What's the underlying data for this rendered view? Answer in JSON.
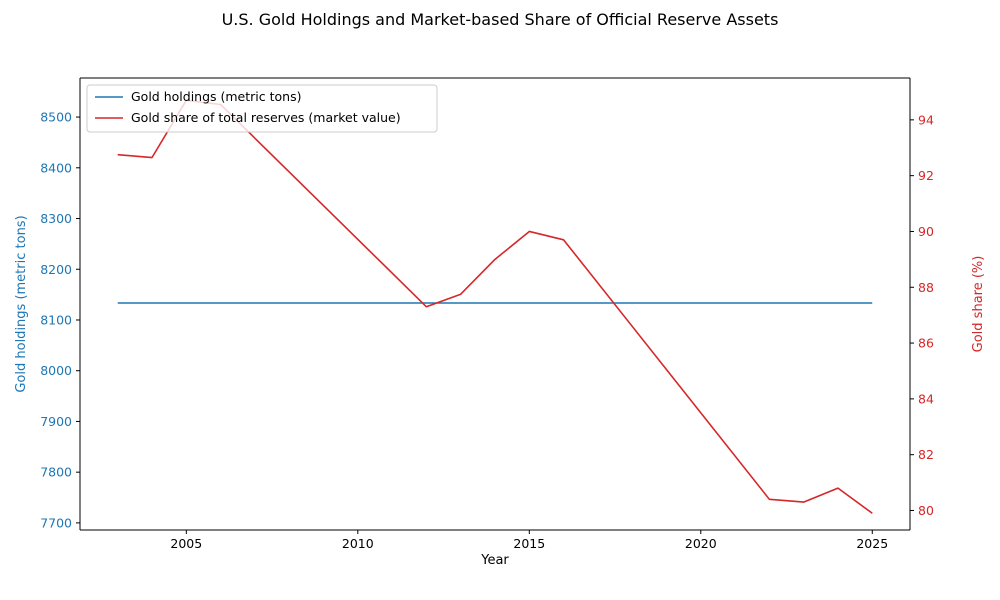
{
  "chart_data": {
    "type": "line",
    "title": "U.S. Gold Holdings and Market-based Share of Official Reserve Assets",
    "xlabel": "Year",
    "x": [
      2003,
      2004,
      2005,
      2006,
      2012,
      2013,
      2014,
      2015,
      2016,
      2022,
      2023,
      2024,
      2025
    ],
    "x_ticks": [
      2005,
      2010,
      2015,
      2020,
      2025
    ],
    "xlim": [
      2001.9,
      2026.1
    ],
    "left_axis": {
      "label": "Gold holdings (metric tons)",
      "color": "#1f77b4",
      "ylim": [
        7686,
        8577
      ],
      "ticks": [
        7700,
        7800,
        7900,
        8000,
        8100,
        8200,
        8300,
        8400,
        8500
      ]
    },
    "right_axis": {
      "label": "Gold share (%)",
      "color": "#d62728",
      "ylim": [
        79.3,
        95.5
      ],
      "ticks": [
        80,
        82,
        84,
        86,
        88,
        90,
        92,
        94
      ]
    },
    "series": [
      {
        "name": "Gold holdings (metric tons)",
        "axis": "left",
        "color": "#1f77b4",
        "x": [
          2003,
          2025
        ],
        "values": [
          8133.5,
          8133.5
        ]
      },
      {
        "name": "Gold share of total reserves (market value)",
        "axis": "right",
        "color": "#d62728",
        "x": [
          2003,
          2004,
          2005,
          2006,
          2012,
          2013,
          2014,
          2015,
          2016,
          2022,
          2023,
          2024,
          2025
        ],
        "values": [
          92.75,
          92.65,
          94.7,
          94.55,
          87.3,
          87.75,
          89.0,
          90.0,
          89.7,
          80.4,
          80.3,
          80.8,
          79.9
        ]
      }
    ],
    "legend_position": "upper left",
    "grid": false
  }
}
